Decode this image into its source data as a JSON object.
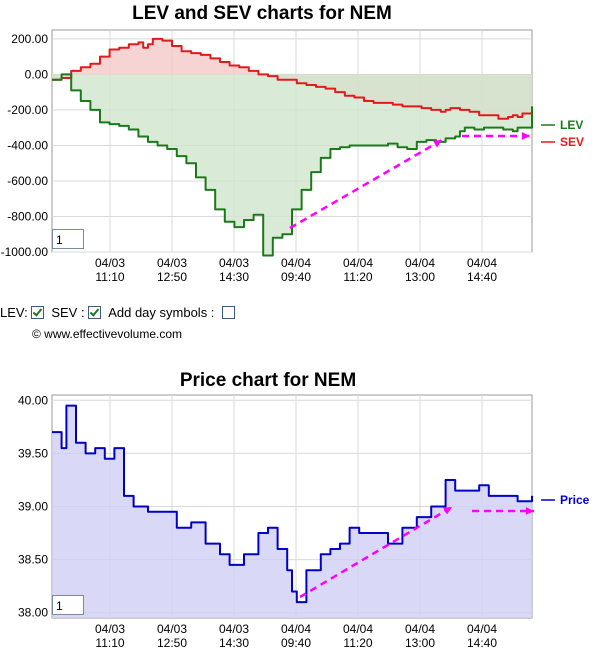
{
  "chart_data": [
    {
      "type": "area",
      "title": "LEV and SEV charts for NEM",
      "xlabel": "",
      "ylabel": "",
      "ylim": [
        -1000,
        250
      ],
      "y_ticks": [
        "200.00",
        "0.00",
        "-200.00",
        "-400.00",
        "-600.00",
        "-800.00",
        "-1000.00"
      ],
      "x_ticks": [
        {
          "date": "04/03",
          "time": "11:10"
        },
        {
          "date": "04/03",
          "time": "12:50"
        },
        {
          "date": "04/03",
          "time": "14:30"
        },
        {
          "date": "04/04",
          "time": "09:40"
        },
        {
          "date": "04/04",
          "time": "11:20"
        },
        {
          "date": "04/04",
          "time": "13:00"
        },
        {
          "date": "04/04",
          "time": "14:40"
        }
      ],
      "grid": true,
      "legend_placement": "right",
      "series": [
        {
          "name": "SEV",
          "color": "#e31a1c",
          "fill": "#f4c9c9",
          "values": [
            -30,
            -20,
            20,
            40,
            60,
            100,
            140,
            150,
            170,
            180,
            150,
            170,
            200,
            190,
            160,
            130,
            120,
            110,
            90,
            70,
            50,
            40,
            20,
            0,
            -10,
            -30,
            -30,
            -50,
            -60,
            -70,
            -80,
            -100,
            -120,
            -130,
            -150,
            -160,
            -160,
            -170,
            -180,
            -180,
            -190,
            -200,
            -200,
            -210,
            -200,
            -190,
            -200,
            -210,
            -230,
            -230,
            -250,
            -240,
            -230,
            -240,
            -220,
            -220
          ],
          "x_positions": [
            0,
            0.02,
            0.04,
            0.06,
            0.08,
            0.1,
            0.12,
            0.14,
            0.16,
            0.18,
            0.19,
            0.2,
            0.21,
            0.23,
            0.25,
            0.27,
            0.29,
            0.31,
            0.33,
            0.35,
            0.37,
            0.39,
            0.41,
            0.43,
            0.45,
            0.47,
            0.49,
            0.51,
            0.53,
            0.55,
            0.57,
            0.59,
            0.61,
            0.63,
            0.65,
            0.67,
            0.69,
            0.71,
            0.73,
            0.75,
            0.77,
            0.79,
            0.8,
            0.81,
            0.82,
            0.83,
            0.85,
            0.87,
            0.89,
            0.91,
            0.93,
            0.95,
            0.96,
            0.97,
            0.98,
            1.0
          ]
        },
        {
          "name": "LEV",
          "color": "#1a7a1a",
          "fill": "#cfe6cc",
          "values": [
            -30,
            0,
            -90,
            -150,
            -200,
            -270,
            -280,
            -290,
            -310,
            -350,
            -380,
            -400,
            -420,
            -460,
            -500,
            -580,
            -650,
            -760,
            -830,
            -860,
            -820,
            -790,
            -1020,
            -920,
            -900,
            -760,
            -650,
            -550,
            -470,
            -420,
            -410,
            -400,
            -400,
            -400,
            -400,
            -390,
            -410,
            -420,
            -380,
            -370,
            -380,
            -360,
            -350,
            -320,
            -300,
            -310,
            -300,
            -300,
            -300,
            -310,
            -310,
            -320,
            -300,
            -300,
            -180
          ],
          "x_positions": [
            0,
            0.02,
            0.04,
            0.06,
            0.08,
            0.1,
            0.12,
            0.14,
            0.16,
            0.18,
            0.2,
            0.22,
            0.24,
            0.26,
            0.28,
            0.3,
            0.32,
            0.34,
            0.36,
            0.38,
            0.4,
            0.42,
            0.44,
            0.46,
            0.48,
            0.5,
            0.52,
            0.54,
            0.56,
            0.58,
            0.6,
            0.62,
            0.64,
            0.66,
            0.68,
            0.7,
            0.72,
            0.74,
            0.76,
            0.78,
            0.8,
            0.82,
            0.84,
            0.85,
            0.86,
            0.88,
            0.9,
            0.92,
            0.93,
            0.94,
            0.95,
            0.96,
            0.97,
            0.98,
            1.0
          ]
        }
      ],
      "annotations": [
        "dashed magenta arrow from 04/04 09:40 low up to 04/04 13:00",
        "dashed magenta horizontal arrow pointing right toward SEV label"
      ],
      "zoom_value": "1"
    },
    {
      "type": "area",
      "title": "Price chart for NEM",
      "xlabel": "",
      "ylabel": "",
      "ylim": [
        37.95,
        40.05
      ],
      "y_ticks": [
        "40.00",
        "39.50",
        "39.00",
        "38.50",
        "38.00"
      ],
      "x_ticks": [
        {
          "date": "04/03",
          "time": "11:10"
        },
        {
          "date": "04/03",
          "time": "12:50"
        },
        {
          "date": "04/03",
          "time": "14:30"
        },
        {
          "date": "04/04",
          "time": "09:40"
        },
        {
          "date": "04/04",
          "time": "11:20"
        },
        {
          "date": "04/04",
          "time": "13:00"
        },
        {
          "date": "04/04",
          "time": "14:40"
        }
      ],
      "grid": true,
      "legend_placement": "right",
      "series": [
        {
          "name": "Price",
          "color": "#0000cc",
          "fill": "#d0d0f5",
          "values": [
            39.7,
            39.55,
            39.95,
            39.6,
            39.5,
            39.55,
            39.45,
            39.55,
            39.1,
            39.0,
            38.95,
            38.95,
            38.8,
            38.85,
            38.65,
            38.55,
            38.45,
            38.55,
            38.75,
            38.8,
            38.6,
            38.4,
            38.2,
            38.1,
            38.4,
            38.55,
            38.6,
            38.65,
            38.8,
            38.75,
            38.75,
            38.65,
            38.8,
            38.9,
            39.0,
            39.25,
            39.15,
            39.15,
            39.2,
            39.1,
            39.1,
            39.05,
            39.1
          ],
          "x_positions": [
            0,
            0.02,
            0.03,
            0.05,
            0.07,
            0.09,
            0.11,
            0.13,
            0.15,
            0.17,
            0.2,
            0.23,
            0.26,
            0.29,
            0.32,
            0.35,
            0.37,
            0.4,
            0.43,
            0.45,
            0.47,
            0.49,
            0.5,
            0.51,
            0.53,
            0.56,
            0.58,
            0.6,
            0.62,
            0.64,
            0.67,
            0.7,
            0.73,
            0.76,
            0.79,
            0.82,
            0.84,
            0.87,
            0.89,
            0.91,
            0.94,
            0.97,
            1.0
          ]
        }
      ],
      "annotations": [
        "dashed magenta arrow from 04/04 09:40 low up to 04/04 13:00",
        "dashed magenta horizontal arrow pointing right toward Price label"
      ],
      "zoom_value": "1"
    }
  ],
  "controls": {
    "lev_label": "LEV:",
    "sev_label": "SEV :",
    "day_symbols_label": "Add day symbols :",
    "copyright": "© www.effectivevolume.com"
  },
  "colors": {
    "annotation": "#ff00ff",
    "grid": "#d9d9d9",
    "axis": "#999999"
  }
}
